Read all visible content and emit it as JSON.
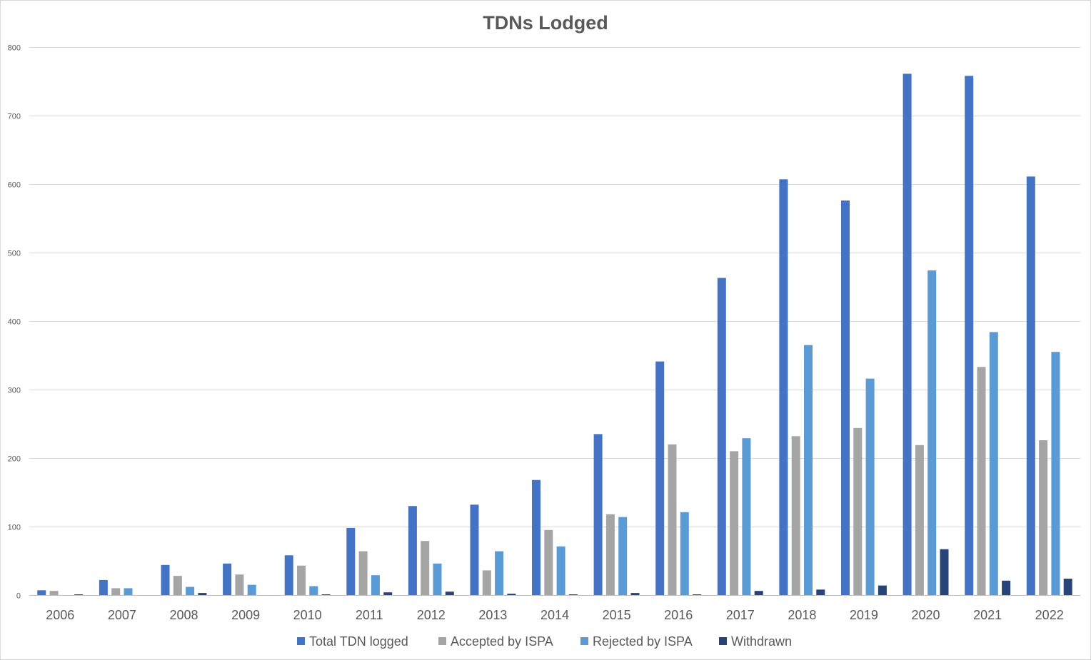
{
  "chart_data": {
    "type": "bar",
    "title": "TDNs Lodged",
    "xlabel": "",
    "ylabel": "",
    "ylim": [
      0,
      800
    ],
    "yticks": [
      0,
      100,
      200,
      300,
      400,
      500,
      600,
      700,
      800
    ],
    "grid": true,
    "legend_position": "bottom",
    "categories": [
      "2006",
      "2007",
      "2008",
      "2009",
      "2010",
      "2011",
      "2012",
      "2013",
      "2014",
      "2015",
      "2016",
      "2017",
      "2018",
      "2019",
      "2020",
      "2021",
      "2022"
    ],
    "series": [
      {
        "name": "Total TDN logged",
        "color": "#4472c4",
        "values": [
          7,
          22,
          44,
          46,
          58,
          98,
          130,
          132,
          168,
          235,
          341,
          463,
          607,
          576,
          761,
          758,
          611
        ]
      },
      {
        "name": "Accepted by ISPA",
        "color": "#a5a5a5",
        "values": [
          6,
          10,
          28,
          30,
          43,
          64,
          79,
          36,
          95,
          118,
          220,
          210,
          232,
          244,
          219,
          333,
          226
        ]
      },
      {
        "name": "Rejected by ISPA",
        "color": "#5b9bd5",
        "values": [
          0,
          10,
          12,
          15,
          13,
          29,
          46,
          64,
          71,
          114,
          121,
          229,
          365,
          316,
          474,
          384,
          355
        ]
      },
      {
        "name": "Withdrawn",
        "color": "#264478",
        "values": [
          1,
          0,
          3,
          0,
          1,
          4,
          5,
          2,
          1,
          3,
          1,
          6,
          8,
          14,
          67,
          21,
          24
        ]
      }
    ]
  }
}
